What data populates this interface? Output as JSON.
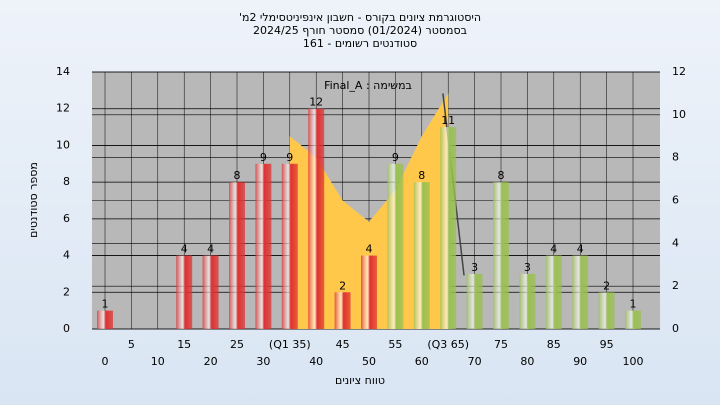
{
  "chart_data": {
    "type": "bar",
    "title": "היסטוגרמת ציונים בקורס - חשבון אינפיניטסימלי 2מ'",
    "subtitle": "בסמסטר  (01/2024)  סמסטר חורף 2024/25",
    "subtitle2": "סטודנטים רשומים - 161",
    "annotation": "במשימה : Final_A",
    "x_label": "טווח ציונים",
    "y_label": "מספר סטודנטים",
    "categories": [
      "0",
      "5",
      "10",
      "15",
      "20",
      "25",
      "30",
      "(Q1 35)",
      "40",
      "45",
      "50",
      "55",
      "60",
      "(Q3 65)",
      "70",
      "75",
      "80",
      "85",
      "90",
      "95",
      "100"
    ],
    "values": [
      1,
      0,
      0,
      4,
      4,
      8,
      9,
      9,
      12,
      2,
      4,
      9,
      8,
      11,
      3,
      8,
      3,
      4,
      4,
      2,
      1
    ],
    "colors": [
      "#e03030",
      "#e03030",
      "#e03030",
      "#e03030",
      "#e03030",
      "#e03030",
      "#e03030",
      "#e03030",
      "#e03030",
      "#e03030",
      "#e03030",
      "#9ac050",
      "#9ac050",
      "#9ac050",
      "#9ac050",
      "#9ac050",
      "#9ac050",
      "#9ac050",
      "#9ac050",
      "#9ac050",
      "#9ac050"
    ],
    "area": {
      "x": [
        35,
        40,
        45,
        50,
        55,
        60,
        65
      ],
      "values": [
        9,
        8,
        6,
        5,
        6.5,
        9,
        11
      ],
      "color": "#ffc84a"
    },
    "line": {
      "x": [
        64,
        68
      ],
      "values": [
        11,
        2.5
      ],
      "color": "#444444"
    },
    "ylim": [
      0,
      14
    ],
    "yticks": [
      0,
      2,
      4,
      6,
      8,
      10,
      12,
      14
    ],
    "y2lim": [
      0,
      12
    ],
    "y2ticks": [
      0,
      2,
      4,
      6,
      8,
      10,
      12
    ],
    "grid": true
  }
}
